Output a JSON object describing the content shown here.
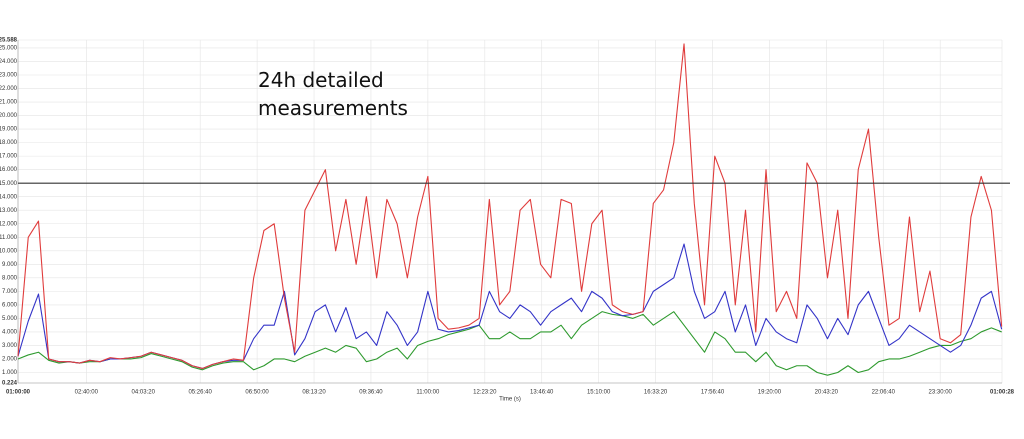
{
  "chart_data": {
    "type": "line",
    "annotation": "24h detailed measurements",
    "xlabel": "Time (s)",
    "x": [
      0,
      900,
      1800,
      2700,
      3600,
      4500,
      5400,
      6300,
      7200,
      8100,
      9000,
      9900,
      10800,
      11700,
      12600,
      13500,
      14400,
      15300,
      16200,
      17100,
      18000,
      18900,
      19800,
      20700,
      21600,
      22500,
      23400,
      24300,
      25200,
      26100,
      27000,
      27900,
      28800,
      29700,
      30600,
      31500,
      32400,
      33300,
      34200,
      35100,
      36000,
      36900,
      37800,
      38700,
      39600,
      40500,
      41400,
      42300,
      43200,
      44100,
      45000,
      45900,
      46800,
      47700,
      48600,
      49500,
      50400,
      51300,
      52200,
      53100,
      54000,
      54900,
      55800,
      56700,
      57600,
      58500,
      59400,
      60300,
      61200,
      62100,
      63000,
      63900,
      64800,
      65700,
      66600,
      67500,
      68400,
      69300,
      70200,
      71100,
      72000,
      72900,
      73800,
      74700,
      75600,
      76500,
      77400,
      78300,
      79200,
      80100,
      81000,
      81900,
      82800,
      83700,
      84600,
      85500,
      86400
    ],
    "series": [
      {
        "color": "#e03c3c",
        "values": [
          2.2,
          11,
          12.2,
          2,
          1.8,
          1.8,
          1.7,
          1.9,
          1.8,
          2.1,
          2.0,
          2.1,
          2.2,
          2.5,
          2.3,
          2.1,
          1.9,
          1.5,
          1.3,
          1.6,
          1.8,
          2.0,
          1.9,
          8,
          11.5,
          12,
          6.5,
          2.5,
          13,
          14.5,
          16,
          10,
          13.8,
          9,
          14,
          8,
          13.8,
          12,
          8,
          12.5,
          15.5,
          5,
          4.2,
          4.3,
          4.5,
          5,
          13.8,
          6,
          7,
          13,
          13.8,
          9,
          8,
          13.8,
          13.5,
          7,
          12,
          13,
          6,
          5.5,
          5.3,
          5.5,
          13.5,
          14.5,
          18,
          25.3,
          13.5,
          6,
          17,
          15,
          6,
          13,
          4,
          16,
          5.5,
          7,
          5,
          16.5,
          15,
          8,
          13,
          5,
          16,
          19,
          11,
          4.5,
          5,
          12.5,
          5.5,
          8.5,
          3.5,
          3.2,
          3.8,
          12.5,
          15.5,
          13,
          4.4
        ]
      },
      {
        "color": "#3434c8",
        "values": [
          2.2,
          4.8,
          6.8,
          2,
          1.8,
          1.8,
          1.7,
          1.9,
          1.8,
          2.0,
          2.0,
          2.1,
          2.2,
          2.5,
          2.3,
          2.1,
          1.9,
          1.5,
          1.3,
          1.6,
          1.8,
          1.9,
          1.9,
          3.5,
          4.5,
          4.5,
          7,
          2.3,
          3.5,
          5.5,
          6,
          4,
          5.8,
          3.5,
          4,
          3,
          5.5,
          4.5,
          3,
          4,
          7,
          4.2,
          4.0,
          4.1,
          4.3,
          4.5,
          7,
          5.5,
          5,
          6,
          5.5,
          4.5,
          5.5,
          6,
          6.5,
          5.5,
          7,
          6.5,
          5.5,
          5.2,
          5.3,
          5.5,
          7,
          7.5,
          8,
          10.5,
          7,
          5,
          5.5,
          7,
          4,
          6,
          3,
          5,
          4,
          3.5,
          3.2,
          6,
          5,
          3.5,
          5,
          3.8,
          6,
          7,
          5,
          3,
          3.5,
          4.5,
          4,
          3.5,
          3,
          2.5,
          3,
          4.5,
          6.5,
          7,
          4.2
        ]
      },
      {
        "color": "#2e9a2e",
        "values": [
          2.0,
          2.3,
          2.5,
          1.9,
          1.7,
          1.8,
          1.7,
          1.8,
          1.8,
          2.0,
          2.0,
          2.0,
          2.1,
          2.4,
          2.2,
          2.0,
          1.8,
          1.4,
          1.2,
          1.5,
          1.7,
          1.8,
          1.8,
          1.2,
          1.5,
          2,
          2,
          1.8,
          2.2,
          2.5,
          2.8,
          2.5,
          3,
          2.8,
          1.8,
          2,
          2.5,
          2.8,
          2,
          3,
          3.3,
          3.5,
          3.8,
          4,
          4.2,
          4.5,
          3.5,
          3.5,
          4,
          3.5,
          3.5,
          4,
          4,
          4.5,
          3.5,
          4.5,
          5,
          5.5,
          5.3,
          5.2,
          5,
          5.3,
          4.5,
          5,
          5.5,
          4.5,
          3.5,
          2.5,
          4,
          3.5,
          2.5,
          2.5,
          1.8,
          2.5,
          1.5,
          1.2,
          1.5,
          1.5,
          1,
          0.8,
          1,
          1.5,
          1,
          1.2,
          1.8,
          2,
          2,
          2.2,
          2.5,
          2.8,
          3,
          3,
          3.3,
          3.5,
          4,
          4.3,
          4
        ]
      }
    ],
    "xlim": [
      0,
      86428
    ],
    "xticks": [
      {
        "value": 0,
        "label": "01:00:00"
      },
      {
        "value": 6000,
        "label": "02:40:00"
      },
      {
        "value": 11000,
        "label": "04:03:20"
      },
      {
        "value": 16000,
        "label": "05:26:40"
      },
      {
        "value": 21000,
        "label": "06:50:00"
      },
      {
        "value": 26000,
        "label": "08:13:20"
      },
      {
        "value": 31000,
        "label": "09:36:40"
      },
      {
        "value": 36000,
        "label": "11:00:00"
      },
      {
        "value": 41000,
        "label": "12:23:20"
      },
      {
        "value": 46000,
        "label": "13:46:40"
      },
      {
        "value": 51000,
        "label": "15:10:00"
      },
      {
        "value": 56000,
        "label": "16:33:20"
      },
      {
        "value": 61000,
        "label": "17:56:40"
      },
      {
        "value": 66000,
        "label": "19:20:00"
      },
      {
        "value": 71000,
        "label": "20:43:20"
      },
      {
        "value": 76000,
        "label": "22:06:40"
      },
      {
        "value": 81000,
        "label": "23:30:00"
      },
      {
        "value": 86428,
        "label": "01:00:28"
      }
    ],
    "ylim": [
      0.224,
      25.588
    ],
    "yticks": [
      0.224,
      {
        "value": 1,
        "label": "1.000"
      },
      {
        "value": 2,
        "label": "2.000"
      },
      {
        "value": 3,
        "label": "3.000"
      },
      {
        "value": 4,
        "label": "4.000"
      },
      {
        "value": 5,
        "label": "5.000"
      },
      {
        "value": 6,
        "label": "6.000"
      },
      {
        "value": 7,
        "label": "7.000"
      },
      {
        "value": 8,
        "label": "8.000"
      },
      {
        "value": 9,
        "label": "9.000"
      },
      {
        "value": 10,
        "label": "10.000"
      },
      {
        "value": 11,
        "label": "11.000"
      },
      {
        "value": 12,
        "label": "12.000"
      },
      {
        "value": 13,
        "label": "13.000"
      },
      {
        "value": 14,
        "label": "14.000"
      },
      {
        "value": 15,
        "label": "15.000"
      },
      {
        "value": 16,
        "label": "16.000"
      },
      {
        "value": 17,
        "label": "17.000"
      },
      {
        "value": 18,
        "label": "18.000"
      },
      {
        "value": 19,
        "label": "19.000"
      },
      {
        "value": 20,
        "label": "20.000"
      },
      {
        "value": 21,
        "label": "21.000"
      },
      {
        "value": 22,
        "label": "22.000"
      },
      {
        "value": 23,
        "label": "23.000"
      },
      {
        "value": 24,
        "label": "24.000"
      },
      {
        "value": 25,
        "label": "25.000"
      },
      25.588
    ],
    "reference_line": 15,
    "grid": true
  }
}
